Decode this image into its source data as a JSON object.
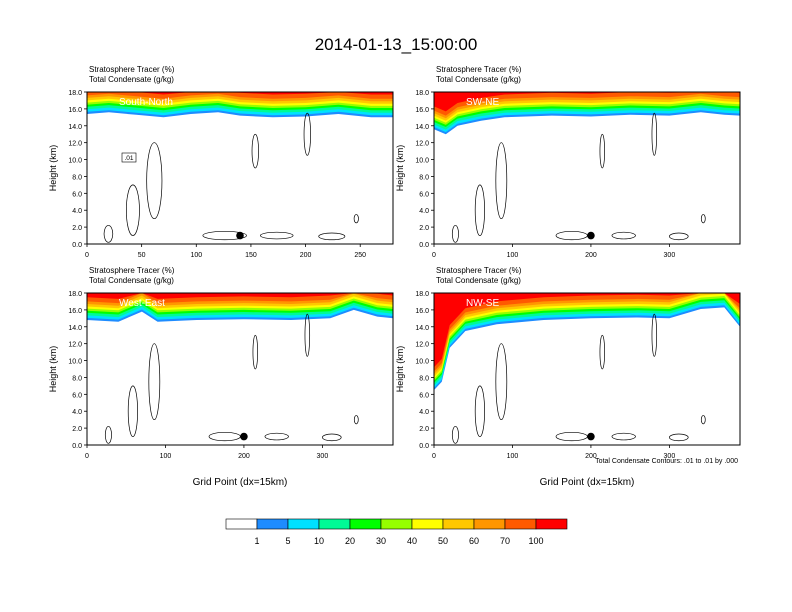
{
  "title": "2014-01-13_15:00:00",
  "footnote": "Total Condensate Contours: .01 to .01 by .000",
  "contour_inline_label": ".01",
  "colorbar": {
    "levels": [
      "1",
      "5",
      "10",
      "20",
      "30",
      "40",
      "50",
      "60",
      "70",
      "100"
    ],
    "colors": [
      "#ffffff",
      "#1e8cff",
      "#00e1ff",
      "#00fa96",
      "#00ff00",
      "#96ff00",
      "#ffff00",
      "#ffc800",
      "#ff9600",
      "#ff5a00",
      "#ff0000"
    ]
  },
  "marker_color": "#000000",
  "chart_data": [
    {
      "type": "heatmap",
      "panel": "South-North",
      "title_lines": [
        "Stratosphere Tracer   (%)",
        "Total Condensate   (g/kg)"
      ],
      "ylabel": "Height (km)",
      "xlabel": "",
      "xlim": [
        0,
        280
      ],
      "ylim": [
        0,
        18
      ],
      "xticks": [
        0,
        50,
        100,
        150,
        200,
        250
      ],
      "yticks": [
        "0.0",
        "2.0",
        "4.0",
        "6.0",
        "8.0",
        "10.0",
        "12.0",
        "14.0",
        "16.0",
        "18.0"
      ],
      "tropopause": [
        [
          0,
          15.4
        ],
        [
          20,
          15.6
        ],
        [
          45,
          15.3
        ],
        [
          70,
          15.0
        ],
        [
          95,
          15.4
        ],
        [
          120,
          15.6
        ],
        [
          140,
          15.2
        ],
        [
          170,
          15.0
        ],
        [
          200,
          15.1
        ],
        [
          230,
          15.4
        ],
        [
          260,
          15.0
        ],
        [
          280,
          15.0
        ]
      ],
      "marker": {
        "x": 140,
        "y": 1.0
      }
    },
    {
      "type": "heatmap",
      "panel": "SW-NE",
      "title_lines": [
        "Stratosphere Tracer   (%)",
        "Total Condensate   (g/kg)"
      ],
      "ylabel": "Height (km)",
      "xlabel": "",
      "xlim": [
        0,
        390
      ],
      "ylim": [
        0,
        18
      ],
      "xticks": [
        0,
        100,
        200,
        300
      ],
      "yticks": [
        "0.0",
        "2.0",
        "4.0",
        "6.0",
        "8.0",
        "10.0",
        "12.0",
        "14.0",
        "16.0",
        "18.0"
      ],
      "tropopause": [
        [
          0,
          13.6
        ],
        [
          15,
          13.0
        ],
        [
          30,
          14.0
        ],
        [
          60,
          14.6
        ],
        [
          90,
          15.0
        ],
        [
          150,
          15.2
        ],
        [
          200,
          15.1
        ],
        [
          250,
          15.3
        ],
        [
          300,
          15.2
        ],
        [
          340,
          15.6
        ],
        [
          370,
          15.3
        ],
        [
          390,
          15.2
        ]
      ],
      "marker": {
        "x": 200,
        "y": 1.0
      }
    },
    {
      "type": "heatmap",
      "panel": "West-East",
      "title_lines": [
        "Stratosphere Tracer   (%)",
        "Total Condensate   (g/kg)"
      ],
      "ylabel": "Height (km)",
      "xlabel": "Grid Point (dx=15km)",
      "xlim": [
        0,
        390
      ],
      "ylim": [
        0,
        18
      ],
      "xticks": [
        0,
        100,
        200,
        300
      ],
      "yticks": [
        "0.0",
        "2.0",
        "4.0",
        "6.0",
        "8.0",
        "10.0",
        "12.0",
        "14.0",
        "16.0",
        "18.0"
      ],
      "tropopause": [
        [
          0,
          14.8
        ],
        [
          40,
          14.6
        ],
        [
          70,
          15.8
        ],
        [
          90,
          14.6
        ],
        [
          140,
          14.8
        ],
        [
          200,
          14.9
        ],
        [
          260,
          14.8
        ],
        [
          310,
          15.0
        ],
        [
          340,
          16.0
        ],
        [
          370,
          15.2
        ],
        [
          390,
          15.0
        ]
      ],
      "marker": {
        "x": 200,
        "y": 1.0
      }
    },
    {
      "type": "heatmap",
      "panel": "NW-SE",
      "title_lines": [
        "Stratosphere Tracer   (%)",
        "Total Condensate   (g/kg)"
      ],
      "ylabel": "Height (km)",
      "xlabel": "Grid Point (dx=15km)",
      "xlim": [
        0,
        390
      ],
      "ylim": [
        0,
        18
      ],
      "xticks": [
        0,
        100,
        200,
        300
      ],
      "yticks": [
        "0.0",
        "2.0",
        "4.0",
        "6.0",
        "8.0",
        "10.0",
        "12.0",
        "14.0",
        "16.0",
        "18.0"
      ],
      "tropopause": [
        [
          0,
          6.5
        ],
        [
          10,
          7.5
        ],
        [
          20,
          11.5
        ],
        [
          40,
          13.5
        ],
        [
          80,
          14.3
        ],
        [
          140,
          14.8
        ],
        [
          200,
          15.0
        ],
        [
          260,
          15.1
        ],
        [
          300,
          15.0
        ],
        [
          340,
          16.1
        ],
        [
          370,
          16.3
        ],
        [
          390,
          14.0
        ]
      ],
      "marker": {
        "x": 200,
        "y": 1.0
      }
    }
  ]
}
